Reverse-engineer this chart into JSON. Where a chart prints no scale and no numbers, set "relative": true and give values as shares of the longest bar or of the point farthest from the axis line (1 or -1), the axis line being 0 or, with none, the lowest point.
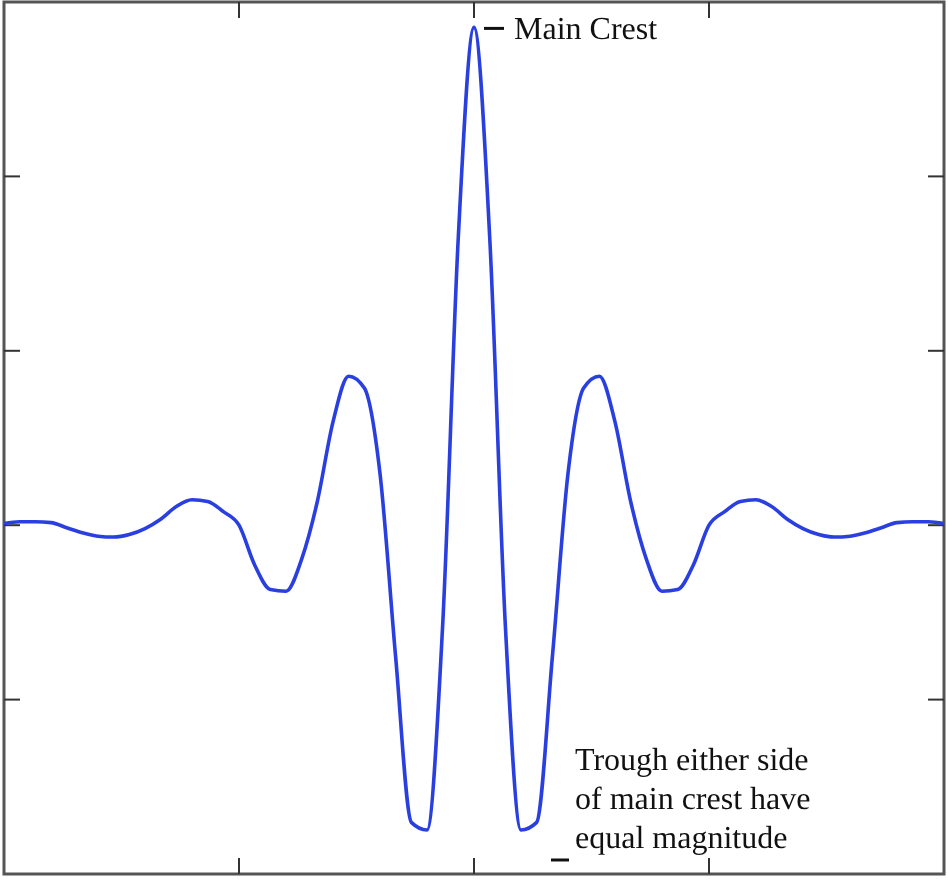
{
  "chart_data": {
    "type": "line",
    "relative": true,
    "categories": [
      null,
      null,
      null,
      null,
      null,
      null,
      null,
      null,
      null,
      null,
      null,
      null,
      null,
      null,
      null,
      null,
      null,
      null,
      null,
      null,
      null,
      null,
      null,
      null,
      null,
      null,
      null,
      null,
      null,
      null,
      null,
      null,
      null,
      null,
      null,
      null,
      null,
      null,
      null,
      null,
      null,
      null,
      null,
      null,
      null,
      null,
      null,
      null,
      null,
      null,
      null,
      null,
      null,
      null,
      null,
      null,
      null,
      null,
      null,
      null,
      null
    ],
    "series": [
      {
        "color": "#2a3fe0",
        "values": [
          0.414,
          0.416,
          0.416,
          0.415,
          0.409,
          0.403,
          0.399,
          0.398,
          0.401,
          0.408,
          0.419,
          0.434,
          0.442,
          0.44,
          0.428,
          0.412,
          0.365,
          0.336,
          0.334,
          0.372,
          0.44,
          0.534,
          0.588,
          0.574,
          0.473,
          0.256,
          0.061,
          0.052,
          0.294,
          0.753,
          1.0,
          0.753,
          0.294,
          0.052,
          0.061,
          0.256,
          0.473,
          0.574,
          0.588,
          0.534,
          0.44,
          0.372,
          0.334,
          0.336,
          0.365,
          0.412,
          0.428,
          0.44,
          0.442,
          0.434,
          0.419,
          0.408,
          0.401,
          0.398,
          0.399,
          0.403,
          0.409,
          0.415,
          0.416,
          0.416,
          0.414
        ]
      }
    ],
    "annotations": [
      "Main Crest",
      "Trough either side of main crest have equal magnitude"
    ],
    "grid": false,
    "marker": "none",
    "line_style": "solid"
  }
}
